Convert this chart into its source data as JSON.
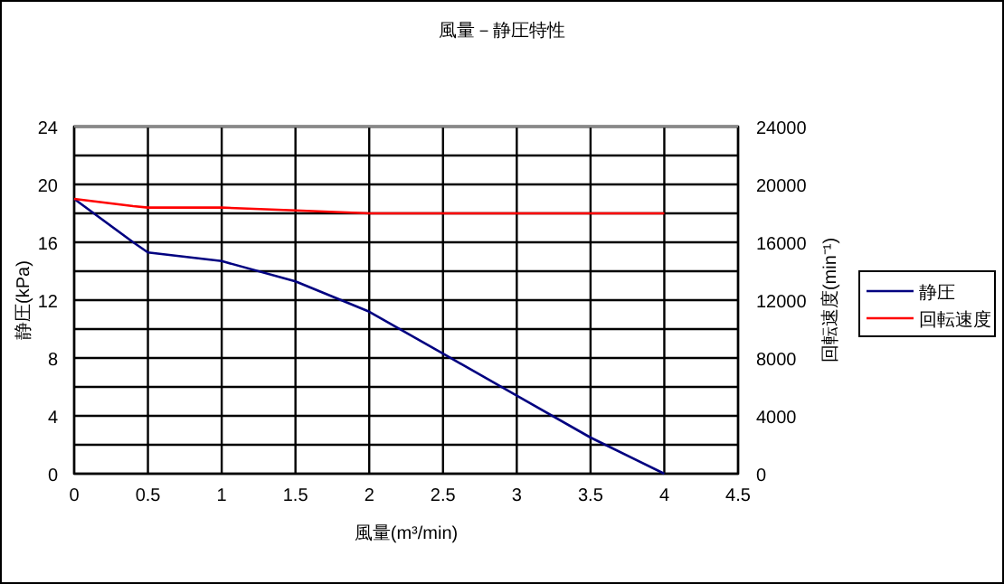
{
  "chart_data": {
    "type": "line",
    "title": "風量－静圧特性",
    "xlabel": "風量(m³/min)",
    "ylabel": "静圧(kPa)",
    "y2label": "回転速度(min⁻¹)",
    "x": [
      0,
      0.4,
      0.5,
      0.75,
      1,
      1.5,
      2,
      2.5,
      3,
      3.5,
      4
    ],
    "series": [
      {
        "name": "静圧",
        "color": "#000080",
        "values": [
          19,
          16,
          15.3,
          15,
          14.7,
          13.3,
          11.2,
          8.3,
          5.4,
          2.5,
          0
        ]
      },
      {
        "name": "回転速度",
        "color": "#ff0000",
        "axis": "y2",
        "values": [
          19000,
          18500,
          18400,
          18400,
          18400,
          18200,
          18000,
          18000,
          18000,
          18000,
          18000
        ]
      }
    ],
    "xlim": [
      0,
      4.5
    ],
    "xticks": [
      0,
      0.5,
      1,
      1.5,
      2,
      2.5,
      3,
      3.5,
      4,
      4.5
    ],
    "ylim": [
      0,
      24
    ],
    "yticks": [
      0,
      {
        "value": 2,
        "label": null
      },
      4,
      {
        "value": 6,
        "label": null
      },
      8,
      {
        "value": 10,
        "label": null
      },
      12,
      {
        "value": 14,
        "label": null
      },
      16,
      {
        "value": 18,
        "label": null
      },
      20,
      {
        "value": 22,
        "label": null
      },
      24
    ],
    "y2lim": [
      0,
      24000
    ],
    "y2ticks": [
      0,
      4000,
      8000,
      12000,
      16000,
      20000,
      24000
    ],
    "grid": true,
    "legend": "right",
    "marker": "none",
    "line_style": "solid"
  }
}
